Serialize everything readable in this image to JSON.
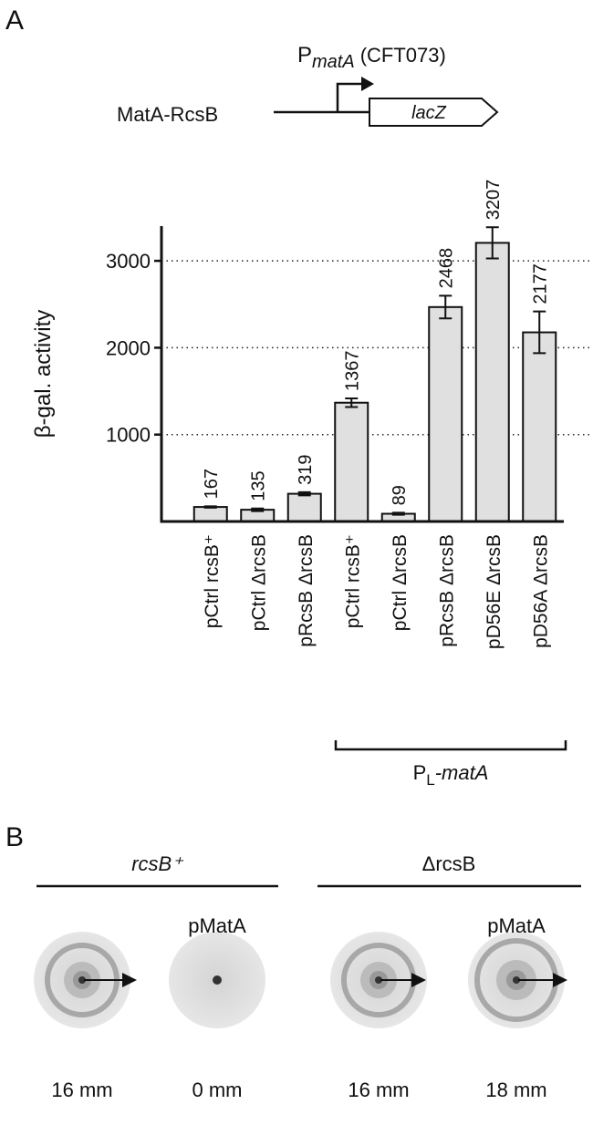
{
  "panel_a": "A",
  "diagram": {
    "construct": "MatA-RcsB",
    "promoter": "P",
    "promoter_sub": "matA",
    "promoter_strain": "(CFT073)",
    "gene": "lacZ"
  },
  "chart_data": {
    "type": "bar",
    "y_label": "β-gal. activity",
    "categories": [
      "pCtrl rcsB⁺",
      "pCtrl ΔrcsB",
      "pRcsB ΔrcsB",
      "pCtrl rcsB⁺",
      "pCtrl ΔrcsB",
      "pRcsB ΔrcsB",
      "pD56E ΔrcsB",
      "pD56A ΔrcsB"
    ],
    "values": [
      167,
      135,
      319,
      1367,
      89,
      2468,
      3207,
      2177
    ],
    "errors": [
      8,
      15,
      18,
      50,
      12,
      130,
      180,
      240
    ],
    "color": "#e0e0e0",
    "ylim": [
      0,
      3400
    ],
    "yticks": [
      1000,
      2000,
      3000
    ],
    "grid": true,
    "group": {
      "label": "P",
      "label_sub": "L",
      "label_suffix": "-matA"
    }
  },
  "panel_b": {
    "label": "B",
    "groups": [
      "rcsB⁺",
      "ΔrcsB"
    ],
    "plates": [
      {
        "measurement": "16 mm"
      },
      {
        "plasmid": "pMatA",
        "measurement": "0 mm"
      },
      {
        "measurement": "16 mm"
      },
      {
        "plasmid": "pMatA",
        "measurement": "18 mm"
      }
    ]
  }
}
